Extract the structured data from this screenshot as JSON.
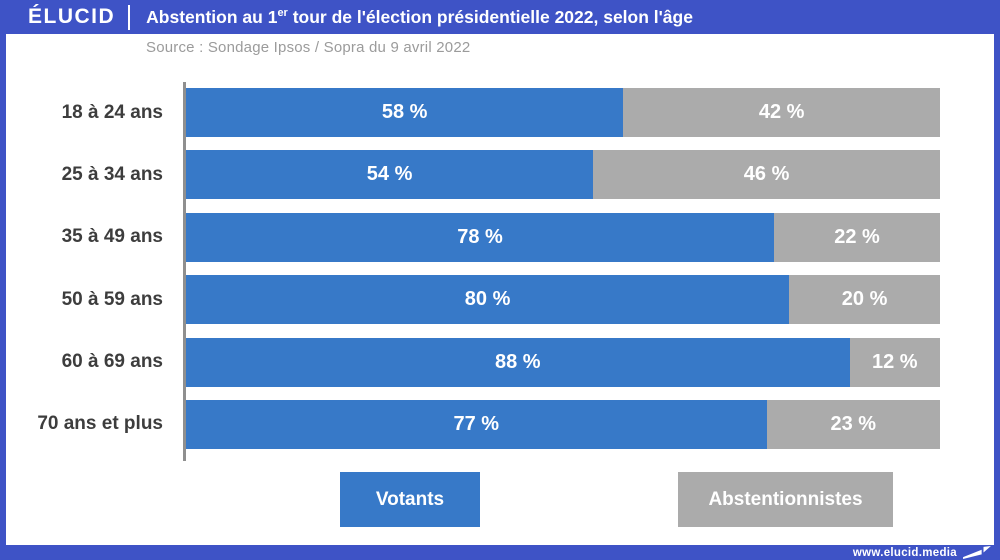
{
  "header": {
    "logo": "ÉLUCID",
    "title_part1": "Abstention au 1",
    "title_sup": "er",
    "title_part2": " tour de l'élection présidentielle 2022, selon l'âge"
  },
  "source": "Source : Sondage Ipsos / Sopra du 9 avril 2022",
  "legend": {
    "votants": "Votants",
    "abstentionnistes": "Abstentionnistes"
  },
  "footer": {
    "url": "www.elucid.media"
  },
  "colors": {
    "brand_blue": "#3e53c6",
    "bar_blue": "#3779c8",
    "bar_gray": "#ababab"
  },
  "chart_data": {
    "type": "bar",
    "orientation": "horizontal_stacked",
    "title": "Abstention au 1er tour de l'élection présidentielle 2022, selon l'âge",
    "subtitle": "Source : Sondage Ipsos / Sopra du 9 avril 2022",
    "categories": [
      "18 à 24 ans",
      "25 à 34 ans",
      "35 à 49 ans",
      "50 à 59 ans",
      "60 à 69 ans",
      "70 ans et plus"
    ],
    "series": [
      {
        "name": "Votants",
        "color": "#3779c8",
        "values": [
          58,
          54,
          78,
          80,
          88,
          77
        ]
      },
      {
        "name": "Abstentionnistes",
        "color": "#ababab",
        "values": [
          42,
          46,
          22,
          20,
          12,
          23
        ]
      }
    ],
    "value_labels": [
      [
        "58 %",
        "42 %"
      ],
      [
        "54 %",
        "46 %"
      ],
      [
        "78 %",
        "22 %"
      ],
      [
        "80 %",
        "20 %"
      ],
      [
        "88 %",
        "12 %"
      ],
      [
        "77 %",
        "23 %"
      ]
    ],
    "xlim": [
      0,
      100
    ],
    "unit": "%",
    "grid": false,
    "legend_position": "bottom"
  }
}
